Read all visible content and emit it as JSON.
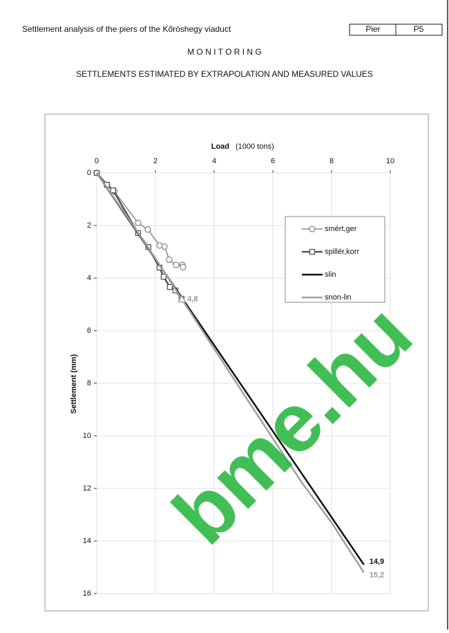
{
  "header": {
    "title": "Settlement analysis of the piers of the Kőröshegy viaduct",
    "pier_label": "Pier",
    "pier_value": "P5",
    "section": "M O N I T O R I N G",
    "subtitle": "SETTLEMENTS ESTIMATED BY EXTRAPOLATION AND MEASURED VALUES"
  },
  "watermark": "bme.hu",
  "chart_data": {
    "type": "line",
    "x_label": "Load",
    "x_unit": "(1000 tons)",
    "y_label": "Settlement  (mm)",
    "xlim": [
      0,
      10
    ],
    "xticks": [
      0,
      2,
      4,
      6,
      8,
      10
    ],
    "ylim": [
      0,
      16
    ],
    "yticks": [
      0,
      2,
      4,
      6,
      8,
      10,
      12,
      14,
      16
    ],
    "y_inverted": true,
    "x_axis_top": true,
    "grid": true,
    "series": [
      {
        "name": "smért,ger",
        "color": "#888888",
        "marker": "circle",
        "width": 1.5,
        "x": [
          0,
          0.35,
          0.6,
          1.41,
          1.74,
          2.14,
          2.31,
          2.47,
          2.7,
          2.92,
          2.94
        ],
        "values": [
          0,
          0.45,
          0.7,
          1.9,
          2.15,
          2.76,
          2.8,
          3.3,
          3.5,
          3.5,
          3.58
        ]
      },
      {
        "name": "spillér,korr",
        "color": "#555555",
        "marker": "square",
        "width": 2.5,
        "x": [
          0,
          0.35,
          0.56,
          1.41,
          1.76,
          2.14,
          2.28,
          2.49,
          2.68,
          2.89
        ],
        "values": [
          0,
          0.45,
          0.66,
          2.29,
          2.82,
          3.6,
          3.95,
          4.34,
          4.47,
          4.79
        ]
      },
      {
        "name": "slin",
        "color": "#111111",
        "width": 2.5,
        "x": [
          0,
          9.1
        ],
        "values": [
          0,
          14.9
        ]
      },
      {
        "name": "snon-lin",
        "color": "#a0a0a0",
        "width": 2.5,
        "x": [
          0,
          1,
          2,
          2.9,
          5,
          7,
          8,
          9.1
        ],
        "values": [
          0,
          1.6,
          3.25,
          4.8,
          8.4,
          11.8,
          13.3,
          15.2
        ]
      }
    ],
    "annotations": [
      {
        "x": 2.9,
        "y": 4.8,
        "label": "4,8",
        "color": "#999999",
        "marker": "triangle"
      },
      {
        "x": 9.1,
        "y": 14.9,
        "label": "14,9",
        "color": "#111111"
      },
      {
        "x": 9.1,
        "y": 15.2,
        "label": "15,2",
        "color": "#999999"
      }
    ]
  }
}
